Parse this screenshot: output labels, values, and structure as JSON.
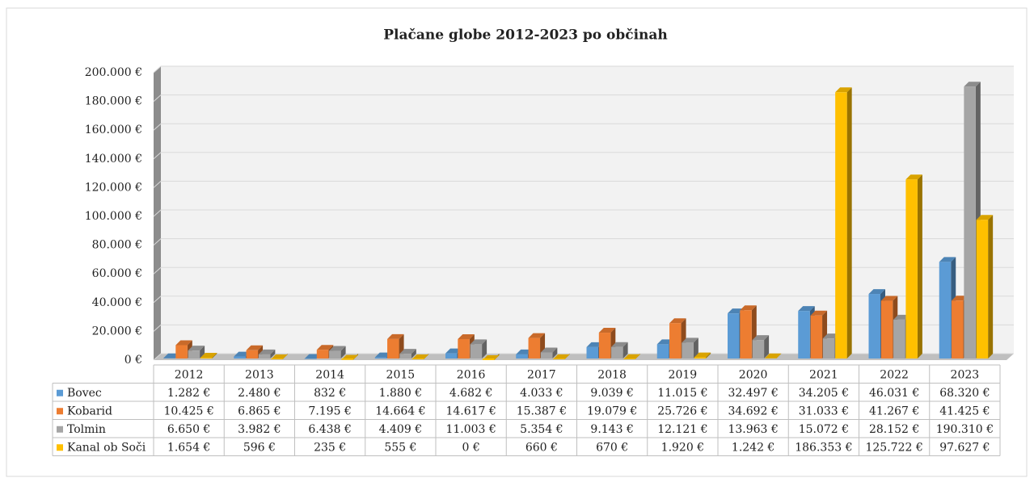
{
  "chart_data": {
    "type": "bar3d",
    "title": "Plačane globe 2012-2023 po občinah",
    "categories": [
      "2012",
      "2013",
      "2014",
      "2015",
      "2016",
      "2017",
      "2018",
      "2019",
      "2020",
      "2021",
      "2022",
      "2023"
    ],
    "series": [
      {
        "name": "Bovec",
        "color": "#5b9bd5",
        "values": [
          1282,
          2480,
          832,
          1880,
          4682,
          4033,
          9039,
          11015,
          32497,
          34205,
          46031,
          68320
        ],
        "value_labels": [
          "1.282 €",
          "2.480 €",
          "832 €",
          "1.880 €",
          "4.682 €",
          "4.033 €",
          "9.039 €",
          "11.015 €",
          "32.497 €",
          "34.205 €",
          "46.031 €",
          "68.320 €"
        ]
      },
      {
        "name": "Kobarid",
        "color": "#ed7d31",
        "values": [
          10425,
          6865,
          7195,
          14664,
          14617,
          15387,
          19079,
          25726,
          34692,
          31033,
          41267,
          41425
        ],
        "value_labels": [
          "10.425 €",
          "6.865 €",
          "7.195 €",
          "14.664 €",
          "14.617 €",
          "15.387 €",
          "19.079 €",
          "25.726 €",
          "34.692 €",
          "31.033 €",
          "41.267 €",
          "41.425 €"
        ]
      },
      {
        "name": "Tolmin",
        "color": "#a5a5a5",
        "values": [
          6650,
          3982,
          6438,
          4409,
          11003,
          5354,
          9143,
          12121,
          13963,
          15072,
          28152,
          190310
        ],
        "value_labels": [
          "6.650 €",
          "3.982 €",
          "6.438 €",
          "4.409 €",
          "11.003 €",
          "5.354 €",
          "9.143 €",
          "12.121 €",
          "13.963 €",
          "15.072 €",
          "28.152 €",
          "190.310 €"
        ]
      },
      {
        "name": "Kanal ob Soči",
        "color": "#ffc000",
        "values": [
          1654,
          596,
          235,
          555,
          0,
          660,
          670,
          1920,
          1242,
          186353,
          125722,
          97627
        ],
        "value_labels": [
          "1.654 €",
          "596 €",
          "235 €",
          "555 €",
          "0 €",
          "660 €",
          "670 €",
          "1.920 €",
          "1.242 €",
          "186.353 €",
          "125.722 €",
          "97.627 €"
        ]
      }
    ],
    "ylim": [
      0,
      200000
    ],
    "yticks": [
      {
        "value": 0,
        "label": "0 €"
      },
      {
        "value": 20000,
        "label": "20.000 €"
      },
      {
        "value": 40000,
        "label": "40.000 €"
      },
      {
        "value": 60000,
        "label": "60.000 €"
      },
      {
        "value": 80000,
        "label": "80.000 €"
      },
      {
        "value": 100000,
        "label": "100.000 €"
      },
      {
        "value": 120000,
        "label": "120.000 €"
      },
      {
        "value": 140000,
        "label": "140.000 €"
      },
      {
        "value": 160000,
        "label": "160.000 €"
      },
      {
        "value": 180000,
        "label": "180.000 €"
      },
      {
        "value": 200000,
        "label": "200.000 €"
      }
    ],
    "grid": true
  }
}
